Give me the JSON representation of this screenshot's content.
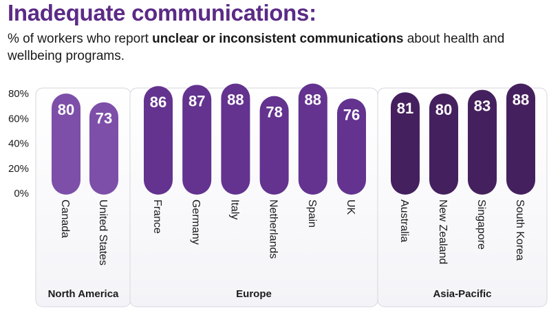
{
  "header": {
    "title": "Inadequate communications:",
    "subtitle_pre": "% of workers who report ",
    "subtitle_bold": "unclear or inconsistent communications",
    "subtitle_post": " about health and wellbeing programs."
  },
  "colors": {
    "title": "#5b2a86",
    "north_america": "#7d4fa8",
    "europe": "#63338f",
    "asia_pacific": "#45205e",
    "panel_border": "#d5d5de",
    "panel_fill_bottom": "#f4f4f8"
  },
  "chart_data": {
    "type": "bar",
    "y_ticks": [
      "0%",
      "20%",
      "40%",
      "60%",
      "80%"
    ],
    "ylim": [
      0,
      80
    ],
    "groups": [
      {
        "region": "North America",
        "categories": [
          "Canada",
          "United States"
        ],
        "values": [
          80,
          73
        ]
      },
      {
        "region": "Europe",
        "categories": [
          "France",
          "Germany",
          "Italy",
          "Netherlands",
          "Spain",
          "UK"
        ],
        "values": [
          86,
          87,
          88,
          78,
          88,
          76
        ]
      },
      {
        "region": "Asia-Pacific",
        "categories": [
          "Australia",
          "New Zealand",
          "Singapore",
          "South Korea"
        ],
        "values": [
          81,
          80,
          83,
          88
        ]
      }
    ]
  }
}
